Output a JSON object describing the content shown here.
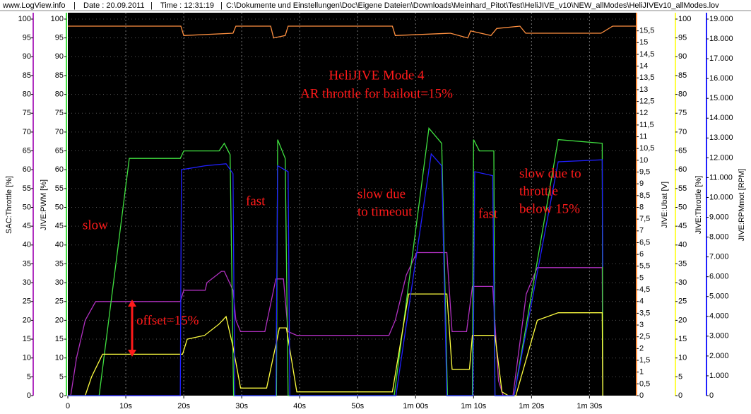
{
  "header": {
    "site": "www.LogView.info",
    "date": "Date : 20.09.2011",
    "time": "Time : 12:31:19",
    "path": "C:\\Dokumente und Einstellungen\\Doc\\Eigene Dateien\\Downloads\\Meinhard_Pitot\\Test\\HeliJIVE_v10\\NEW_allModes\\HeliJIVEv10_allModes.lov"
  },
  "chart_data": {
    "type": "line",
    "xlim": [
      0,
      98
    ],
    "xticks": [
      0,
      {
        "value": 10,
        "label": "10s"
      },
      {
        "value": 20,
        "label": "20s"
      },
      {
        "value": 30,
        "label": "30s"
      },
      {
        "value": 40,
        "label": "40s"
      },
      {
        "value": 50,
        "label": "50s"
      },
      {
        "value": 60,
        "label": "1m 00s"
      },
      {
        "value": 70,
        "label": "1m 10s"
      },
      {
        "value": 80,
        "label": "1m 20s"
      },
      {
        "value": 90,
        "label": "1m 30s"
      }
    ],
    "grid": true,
    "annotations": [
      "HeliJIVE Mode 4",
      "AR throttle for bailout=15%",
      "slow",
      "fast",
      "slow due",
      "to timeout",
      "fast",
      "slow due to",
      "throttle",
      "below 15%",
      "offset=15%"
    ],
    "series": [
      {
        "name": "SAC:Throttle [%]",
        "color": "#b030c0",
        "ylim": [
          0,
          100
        ],
        "yticks": [
          0,
          5,
          10,
          15,
          20,
          25,
          30,
          35,
          40,
          45,
          50,
          55,
          60,
          65,
          70,
          75,
          80,
          85,
          90,
          95,
          100
        ],
        "x": [
          0,
          0.5,
          1.5,
          3,
          4.8,
          19.4,
          20,
          23.7,
          24,
          26.5,
          27,
          28.5,
          29,
          29.8,
          34,
          35.9,
          37.2,
          38,
          39.5,
          55.4,
          56.5,
          58.4,
          60.2,
          65.4,
          66.3,
          68.8,
          69.8,
          73.3,
          74.3,
          75.1,
          76.8,
          79.1,
          81,
          92.2,
          92.3
        ],
        "values": [
          0,
          0,
          10,
          20,
          25,
          25,
          28,
          28,
          30,
          33,
          33,
          28,
          20,
          17,
          17,
          31,
          31,
          17,
          16,
          16,
          20,
          32,
          38,
          38,
          17,
          17,
          29,
          29,
          4,
          0,
          0,
          27,
          34,
          34,
          0
        ]
      },
      {
        "name": "JIVE:PWM [%]",
        "color": "#40e040",
        "ylim": [
          0,
          100
        ],
        "yticks": [
          0,
          5,
          10,
          15,
          20,
          25,
          30,
          35,
          40,
          45,
          50,
          55,
          60,
          65,
          70,
          75,
          80,
          85,
          90,
          95,
          100
        ],
        "x": [
          0,
          5.4,
          10.6,
          19.4,
          20,
          26.1,
          27,
          28,
          28.6,
          36,
          36.2,
          37.5,
          38,
          56.3,
          62.3,
          64.5,
          65.5,
          69.8,
          70,
          71,
          73.5,
          73.7,
          77,
          84.6,
          92.2,
          92.3
        ],
        "values": [
          0,
          0,
          63,
          63,
          65,
          65,
          67,
          64,
          0,
          0,
          68,
          63,
          0,
          0,
          71,
          67,
          0,
          0,
          68,
          65,
          65,
          0,
          0,
          68,
          67,
          0
        ]
      },
      {
        "name": "JIVE:Ubat [V]",
        "color": "#ff9040",
        "ylim": [
          0,
          16
        ],
        "yticks": [
          0,
          {
            "value": 0.5,
            "label": "0,5"
          },
          1,
          {
            "value": 1.5,
            "label": "1,5"
          },
          2,
          {
            "value": 2.5,
            "label": "2,5"
          },
          3,
          {
            "value": 3.5,
            "label": "3,5"
          },
          4,
          {
            "value": 4.5,
            "label": "4,5"
          },
          5,
          {
            "value": 5.5,
            "label": "5,5"
          },
          6,
          {
            "value": 6.5,
            "label": "6,5"
          },
          7,
          {
            "value": 7.5,
            "label": "7,5"
          },
          8,
          {
            "value": 8.5,
            "label": "8,5"
          },
          9,
          {
            "value": 9.5,
            "label": "9,5"
          },
          10,
          {
            "value": 10.5,
            "label": "10,5"
          },
          11,
          {
            "value": 11.5,
            "label": "11,5"
          },
          12,
          {
            "value": 12.5,
            "label": "12,5"
          },
          13,
          {
            "value": 13.5,
            "label": "13,5"
          },
          14,
          {
            "value": 14.5,
            "label": "14,5"
          },
          15,
          {
            "value": 15.5,
            "label": "15,5"
          }
        ],
        "x": [
          0,
          19.5,
          20,
          28.5,
          29,
          35,
          35.5,
          37.5,
          38,
          56,
          56.5,
          66,
          69,
          69.5,
          73,
          74,
          78,
          79,
          92,
          94,
          98
        ],
        "values": [
          15.7,
          15.7,
          15.3,
          15.4,
          15.7,
          15.7,
          15.2,
          15.3,
          15.7,
          15.7,
          15.3,
          15.4,
          15.2,
          15.5,
          15.3,
          15.6,
          15.7,
          15.4,
          15.4,
          15.7,
          15.7
        ]
      },
      {
        "name": "JIVE:Throttle [%]",
        "color": "#ffff40",
        "ylim": [
          0,
          100
        ],
        "yticks": [
          0,
          5,
          10,
          15,
          20,
          25,
          30,
          35,
          40,
          45,
          50,
          55,
          60,
          65,
          70,
          75,
          80,
          85,
          90,
          95,
          100
        ],
        "x": [
          0,
          3,
          4.1,
          6,
          19.8,
          20.6,
          23.6,
          26.1,
          27.3,
          28.5,
          29.8,
          34.3,
          36.1,
          36.5,
          37.7,
          39.5,
          56,
          58.8,
          65.4,
          66.3,
          69.3,
          69.8,
          73.7,
          74.9,
          76,
          77.3,
          81,
          84.6,
          92.2,
          92.3
        ],
        "values": [
          0,
          0,
          5,
          11,
          11,
          15,
          16,
          19,
          21,
          13,
          2,
          2,
          15,
          18,
          18,
          1,
          1,
          27,
          27,
          7,
          7,
          16,
          16,
          1,
          0,
          0,
          20,
          22,
          22,
          0
        ]
      },
      {
        "name": "JIVE:RPMmot [RPM]",
        "color": "#2020ff",
        "ylim": [
          0,
          19000
        ],
        "yticks": [
          0,
          {
            "value": 1000,
            "label": "1.000"
          },
          {
            "value": 2000,
            "label": "2.000"
          },
          {
            "value": 3000,
            "label": "3.000"
          },
          {
            "value": 4000,
            "label": "4.000"
          },
          {
            "value": 5000,
            "label": "5.000"
          },
          {
            "value": 6000,
            "label": "6.000"
          },
          {
            "value": 7000,
            "label": "7.000"
          },
          {
            "value": 8000,
            "label": "8.000"
          },
          {
            "value": 9000,
            "label": "9.000"
          },
          {
            "value": 10000,
            "label": "10.000"
          },
          {
            "value": 11000,
            "label": "11.000"
          },
          {
            "value": 12000,
            "label": "12.000"
          },
          {
            "value": 13000,
            "label": "13.000"
          },
          {
            "value": 14000,
            "label": "14.000"
          },
          {
            "value": 15000,
            "label": "15.000"
          },
          {
            "value": 16000,
            "label": "16.000"
          },
          {
            "value": 17000,
            "label": "17.000"
          },
          {
            "value": 18000,
            "label": "18.000"
          },
          {
            "value": 19000,
            "label": "19.000"
          }
        ],
        "x": [
          0,
          19.4,
          19.6,
          23.7,
          27.3,
          28.5,
          28.8,
          35.9,
          36.2,
          38,
          38.3,
          56.6,
          62.7,
          64.5,
          65.4,
          69.9,
          70.2,
          73.3,
          73.7,
          77,
          84.6,
          92.2,
          92.3
        ],
        "values": [
          0,
          0,
          11400,
          11600,
          11700,
          11200,
          0,
          0,
          11600,
          11300,
          0,
          0,
          12200,
          11600,
          0,
          0,
          11300,
          11100,
          0,
          0,
          11800,
          11900,
          6500
        ]
      }
    ]
  }
}
